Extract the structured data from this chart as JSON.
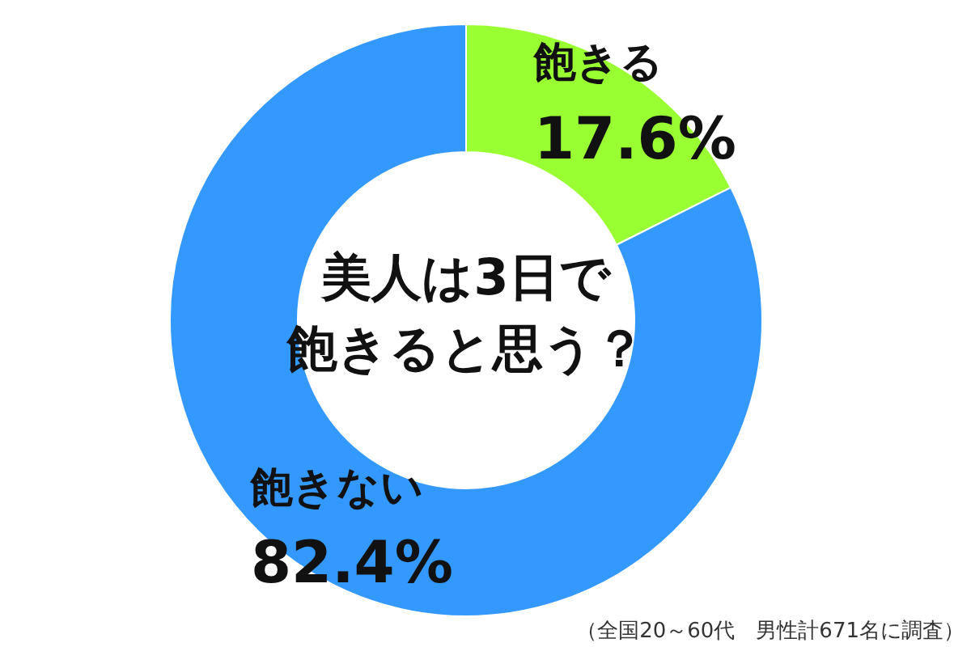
{
  "chart_data": {
    "type": "donut",
    "title": "美人は3日で飽きると思う？",
    "categories": [
      "飽きる",
      "飽きない"
    ],
    "values": [
      17.6,
      82.4
    ],
    "value_labels": [
      "17.6%",
      "82.4%"
    ],
    "colors": [
      "#99ff33",
      "#3399ff"
    ],
    "annotations": [
      "（全国20～60代　男性計671名に調査）"
    ]
  }
}
